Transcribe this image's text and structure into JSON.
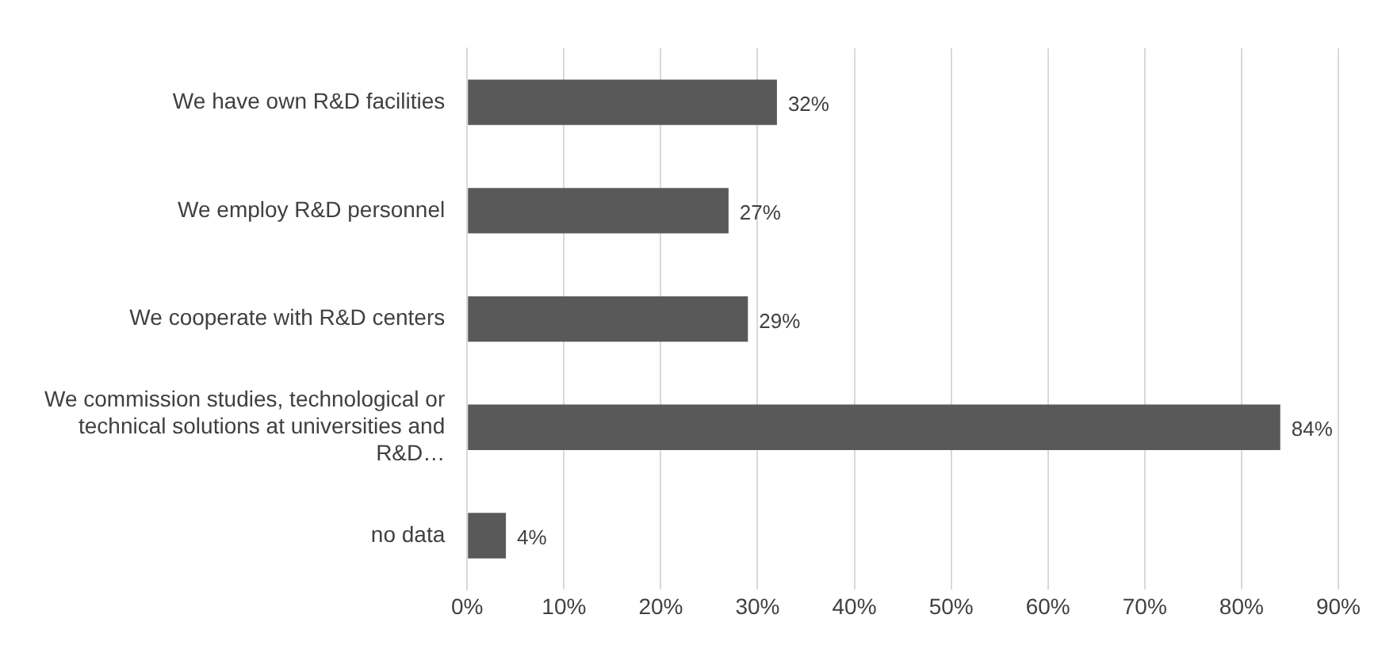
{
  "chart_data": {
    "type": "bar",
    "orientation": "horizontal",
    "categories": [
      "We have own R&D facilities",
      "We employ R&D personnel",
      "We cooperate with R&D centers",
      "We commission studies, technological or technical solutions at universities and R&D…",
      "no data"
    ],
    "values": [
      32,
      27,
      29,
      84,
      4
    ],
    "value_labels": [
      "32%",
      "27%",
      "29%",
      "84%",
      "4%"
    ],
    "color": "#595959",
    "xlim": [
      0,
      90
    ],
    "xticks": [
      {
        "value": 0,
        "label": "0%"
      },
      {
        "value": 10,
        "label": "10%"
      },
      {
        "value": 20,
        "label": "20%"
      },
      {
        "value": 30,
        "label": "30%"
      },
      {
        "value": 40,
        "label": "40%"
      },
      {
        "value": 50,
        "label": "50%"
      },
      {
        "value": 60,
        "label": "60%"
      },
      {
        "value": 70,
        "label": "70%"
      },
      {
        "value": 80,
        "label": "80%"
      },
      {
        "value": 90,
        "label": "90%"
      }
    ],
    "grid": "x",
    "legend": false
  }
}
